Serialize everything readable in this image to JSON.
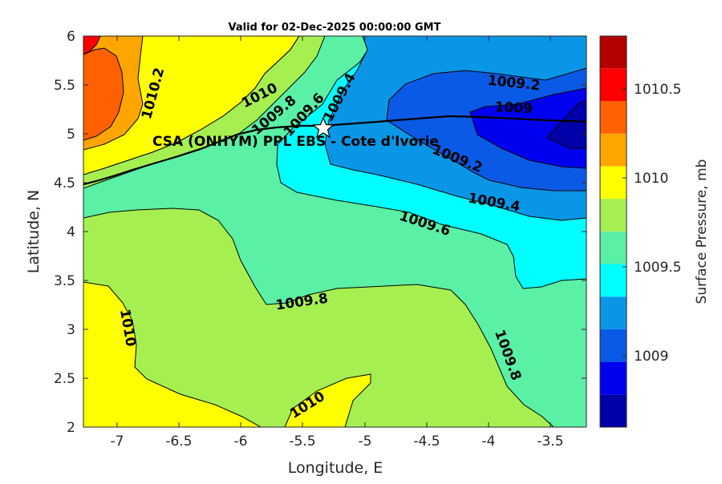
{
  "title": "Valid for 02-Dec-2025 00:00:00 GMT",
  "site_label": "CSA (ONHYM) PPL EBS  - Cote d'Ivorie",
  "colors": {
    "bands": [
      "#0000a8",
      "#0000f0",
      "#0a5ae6",
      "#0a96e6",
      "#00ffff",
      "#5af0a5",
      "#a5f050",
      "#ffff00",
      "#ffa500",
      "#ff6000",
      "#ff0000",
      "#b40000"
    ],
    "coastline": "#000000"
  },
  "chart_data": {
    "type": "contour",
    "title": "Valid for 02-Dec-2025 00:00:00 GMT",
    "xlabel": "Longitude, E",
    "ylabel": "Latitude, N",
    "xlim": [
      -7.25,
      -3.2
    ],
    "ylim": [
      2,
      6
    ],
    "x_ticks": [
      "-7",
      "-6.5",
      "-6",
      "-5.5",
      "-5",
      "-4.5",
      "-4",
      "-3.5"
    ],
    "y_ticks": [
      "2",
      "2.5",
      "3",
      "3.5",
      "4",
      "4.5",
      "5",
      "5.5",
      "6"
    ],
    "colorbar": {
      "label": "Surface Pressure, mb",
      "range": [
        1008.6,
        1010.8
      ],
      "step": 0.2,
      "ticks": [
        "1009",
        "1009.5",
        "1010",
        "1010.5"
      ]
    },
    "contour_labels": [
      {
        "text": "1010.2",
        "lon": -6.8,
        "lat": 5.37
      },
      {
        "text": "1010",
        "lon": -5.85,
        "lat": 5.42
      },
      {
        "text": "1009.8",
        "lon": -5.72,
        "lat": 5.23
      },
      {
        "text": "1009.6",
        "lon": -5.43,
        "lat": 5.24
      },
      {
        "text": "1009.4",
        "lon": -5.15,
        "lat": 5.42
      },
      {
        "text": "1009.2",
        "lon": -3.9,
        "lat": 5.55
      },
      {
        "text": "1009",
        "lon": -3.98,
        "lat": 5.28
      },
      {
        "text": "1009.2",
        "lon": -4.54,
        "lat": 4.74
      },
      {
        "text": "1009.4",
        "lon": -4.1,
        "lat": 4.33
      },
      {
        "text": "1009.6",
        "lon": -4.54,
        "lat": 4.07
      },
      {
        "text": "1009.8",
        "lon": -5.48,
        "lat": 3.28
      },
      {
        "text": "1010",
        "lon": -6.9,
        "lat": 3.04
      },
      {
        "text": "1009.8",
        "lon": -4.13,
        "lat": 2.97
      },
      {
        "text": "1010",
        "lon": -5.45,
        "lat": 2.3
      }
    ],
    "site": {
      "lon": -5.33,
      "lat": 5.07,
      "marker": "star"
    }
  }
}
